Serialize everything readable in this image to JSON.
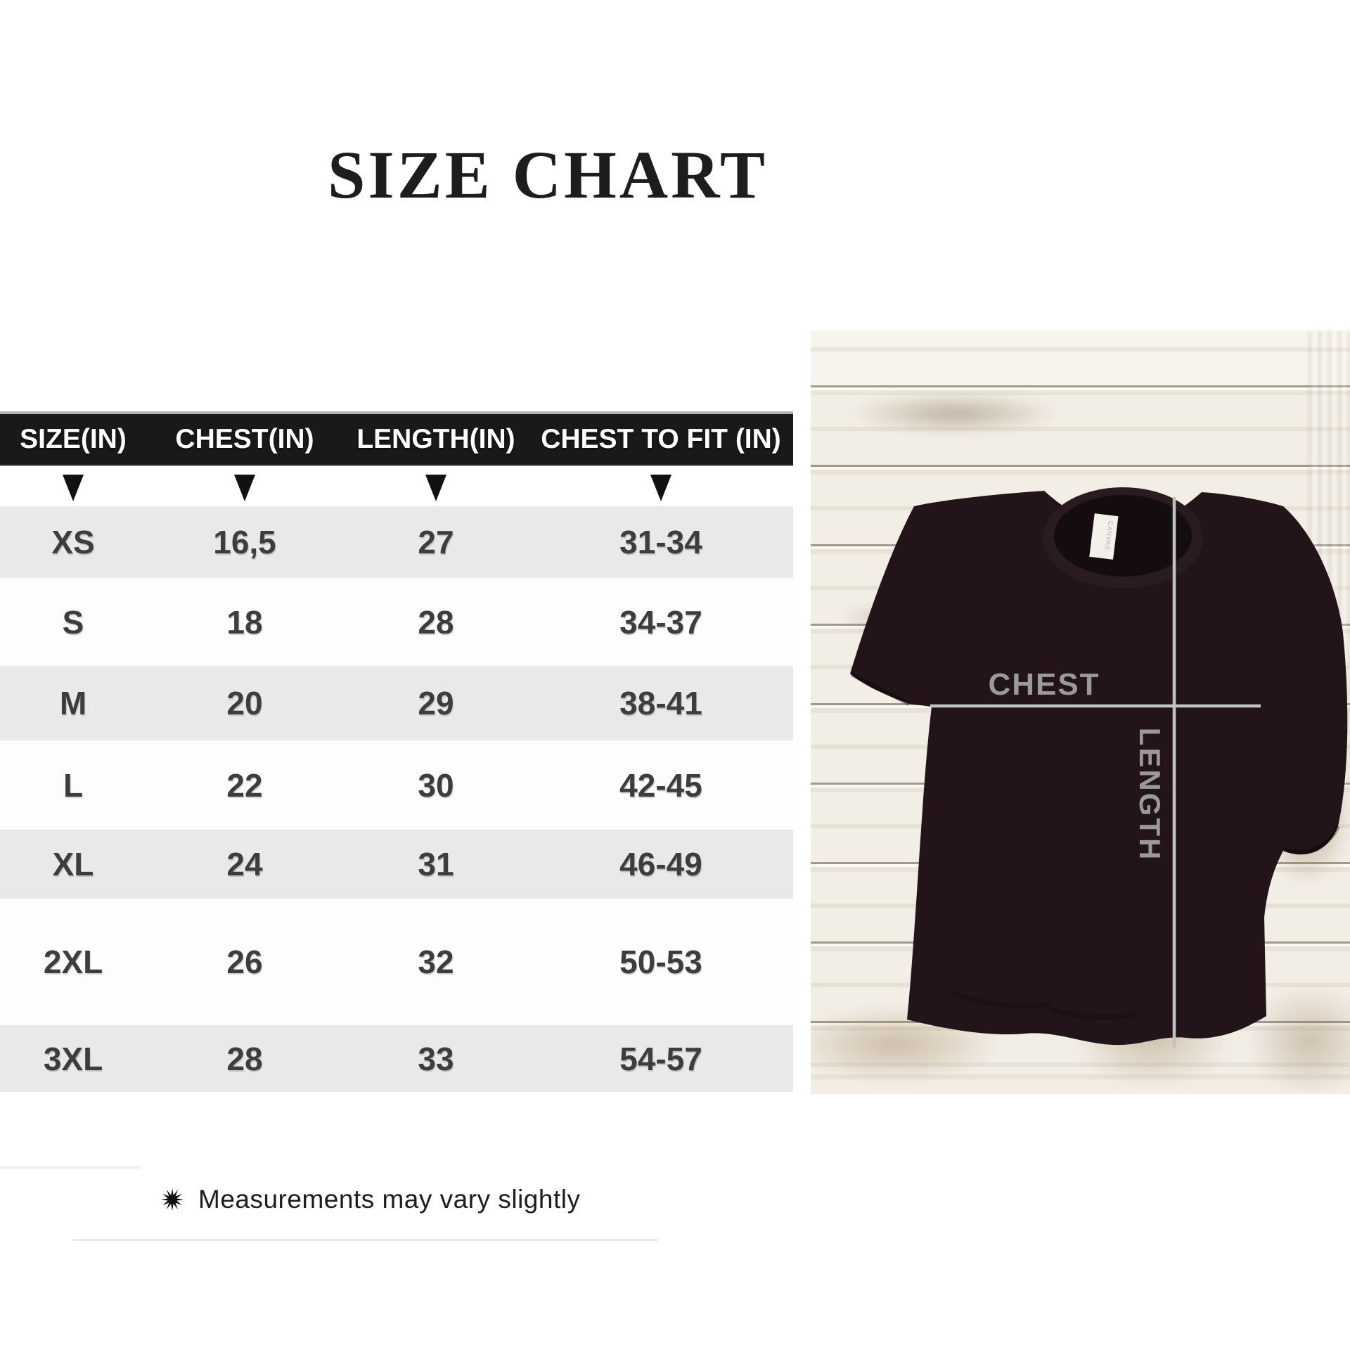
{
  "title": "SIZE CHART",
  "table": {
    "headers": [
      "SIZE(IN)",
      "CHEST(IN)",
      "LENGTH(IN)",
      "CHEST TO FIT (IN)"
    ],
    "rows": [
      {
        "size": "XS",
        "chest": "16,5",
        "length": "27",
        "fit": "31-34"
      },
      {
        "size": "S",
        "chest": "18",
        "length": "28",
        "fit": "34-37"
      },
      {
        "size": "M",
        "chest": "20",
        "length": "29",
        "fit": "38-41"
      },
      {
        "size": "L",
        "chest": "22",
        "length": "30",
        "fit": "42-45"
      },
      {
        "size": "XL",
        "chest": "24",
        "length": "31",
        "fit": "46-49"
      },
      {
        "size": "2XL",
        "chest": "26",
        "length": "32",
        "fit": "50-53"
      },
      {
        "size": "3XL",
        "chest": "28",
        "length": "33",
        "fit": "54-57"
      }
    ]
  },
  "diagram": {
    "chest_label": "CHEST",
    "length_label": "LENGTH",
    "tag_label": "CANVAS"
  },
  "footnote": {
    "icon": "starburst",
    "text": "Measurements may vary slightly"
  },
  "colors": {
    "header_bg": "#191919",
    "header_text": "#ffffff",
    "row_alt_bg": "#e9e9e9",
    "row_bg": "#fdfdfd",
    "cell_text": "#3d3d3d",
    "title_text": "#1d1d1d",
    "shirt": "#221418",
    "measure_line": "#c2c2c2",
    "measure_label": "#9a9a9a",
    "wood_base": "#f2eee6"
  },
  "chart_data": {
    "type": "table",
    "title": "SIZE CHART",
    "columns": [
      "SIZE(IN)",
      "CHEST(IN)",
      "LENGTH(IN)",
      "CHEST TO FIT (IN)"
    ],
    "rows": [
      [
        "XS",
        "16,5",
        "27",
        "31-34"
      ],
      [
        "S",
        "18",
        "28",
        "34-37"
      ],
      [
        "M",
        "20",
        "29",
        "38-41"
      ],
      [
        "L",
        "22",
        "30",
        "42-45"
      ],
      [
        "XL",
        "24",
        "31",
        "46-49"
      ],
      [
        "2XL",
        "26",
        "32",
        "50-53"
      ],
      [
        "3XL",
        "28",
        "33",
        "54-57"
      ]
    ]
  }
}
